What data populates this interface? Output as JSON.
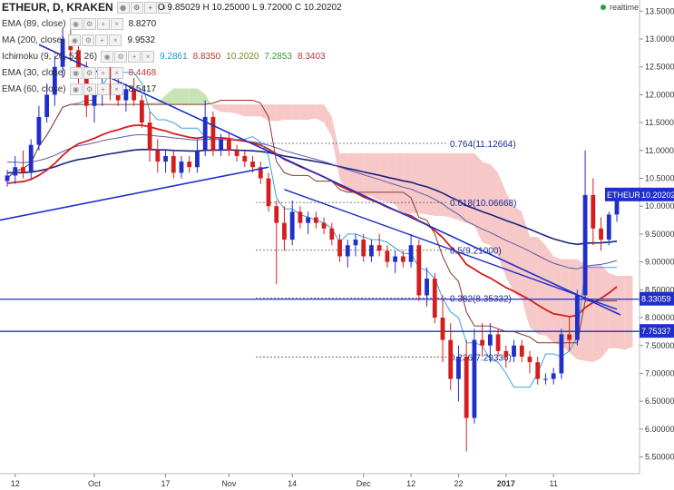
{
  "header": {
    "symbol": "ETHEUR, D, KRAKEN",
    "ohlc": "O 9.85029  H 10.25000  L 9.72000  C 10.20202",
    "realtime": "realtime"
  },
  "indicators": [
    {
      "label": "EMA (89, close)",
      "values": [
        "8.8270"
      ],
      "colors": [
        "#222222"
      ]
    },
    {
      "label": "MA (200, close)",
      "values": [
        "9.9532"
      ],
      "colors": [
        "#222222"
      ]
    },
    {
      "label": "Ichimoku (9, 26, 52, 26)",
      "values": [
        "9.2861",
        "8.8350",
        "10.2020",
        "7.2853",
        "8.3403"
      ],
      "colors": [
        "#2196c9",
        "#c0392b",
        "#6b8e23",
        "#3b9a3b",
        "#c0392b"
      ]
    },
    {
      "label": "EMA (30, close)",
      "values": [
        "8.4468"
      ],
      "colors": [
        "#c0392b"
      ]
    },
    {
      "label": "EMA (60, close)",
      "values": [
        "8.5417"
      ],
      "colors": [
        "#222222"
      ]
    }
  ],
  "colors": {
    "bull": "#1f2fc8",
    "bear": "#d41e1e",
    "ema30": "#d41e1e",
    "ema60": "#5b5ba8",
    "ma200": "#1a2280",
    "tenkan": "#3aa3dc",
    "kijun": "#8a3a2a",
    "cloud_bull": "#b6d9a0",
    "cloud_bear": "#f4b6b6",
    "trendline": "#1f2fc8",
    "fib": "#555555",
    "price_label": "#1f2fc8"
  },
  "chart_data": {
    "type": "candlestick",
    "symbol": "ETHEUR",
    "timeframe": "D",
    "exchange": "KRAKEN",
    "ylim": [
      5.2,
      13.7
    ],
    "y_ticks": [
      "13.50000",
      "13.00000",
      "12.50000",
      "12.00000",
      "11.50000",
      "11.00000",
      "10.50000",
      "10.00000",
      "9.50000",
      "9.00000",
      "8.50000",
      "8.00000",
      "7.50000",
      "7.00000",
      "6.50000",
      "6.00000",
      "5.50000"
    ],
    "x_ticks": [
      "12",
      "Oct",
      "17",
      "Nov",
      "14",
      "Dec",
      "12",
      "22",
      "2017",
      "11"
    ],
    "last_price_label": "10.20202",
    "price_tags": [
      {
        "label": "ETHEUR",
        "value": "10.20202"
      },
      {
        "label": "",
        "value": "8.33059"
      },
      {
        "label": "",
        "value": "7.75337"
      }
    ],
    "horizontal_lines": [
      8.33059,
      7.75337
    ],
    "fib_levels": [
      {
        "label": "0.764(11.12664)",
        "value": 11.12664
      },
      {
        "label": "0.618(10.06668)",
        "value": 10.06668
      },
      {
        "label": "0.5(9.21000)",
        "value": 9.21
      },
      {
        "label": "0.382(8.35332)",
        "value": 8.35332
      },
      {
        "label": "0.236(7.29336)",
        "value": 7.29336
      }
    ],
    "candles": [
      [
        10.45,
        10.65,
        10.35,
        10.55
      ],
      [
        10.55,
        10.9,
        10.4,
        10.7
      ],
      [
        10.7,
        11.0,
        10.5,
        10.6
      ],
      [
        10.6,
        11.2,
        10.5,
        11.1
      ],
      [
        11.1,
        11.8,
        11.0,
        11.6
      ],
      [
        11.6,
        12.2,
        11.5,
        12.0
      ],
      [
        12.0,
        12.7,
        11.8,
        12.5
      ],
      [
        12.5,
        13.2,
        12.3,
        13.0
      ],
      [
        13.0,
        13.3,
        12.6,
        12.8
      ],
      [
        12.8,
        13.0,
        12.2,
        12.4
      ],
      [
        12.4,
        12.6,
        11.6,
        11.8
      ],
      [
        11.8,
        12.1,
        11.5,
        12.0
      ],
      [
        12.0,
        12.4,
        11.8,
        12.2
      ],
      [
        12.2,
        12.5,
        11.9,
        12.1
      ],
      [
        12.1,
        12.3,
        11.8,
        11.9
      ],
      [
        11.9,
        12.2,
        11.7,
        12.1
      ],
      [
        12.1,
        12.3,
        11.8,
        11.9
      ],
      [
        11.9,
        12.0,
        11.4,
        11.5
      ],
      [
        11.5,
        11.7,
        10.8,
        11.0
      ],
      [
        11.0,
        11.2,
        10.6,
        10.8
      ],
      [
        10.8,
        11.0,
        10.6,
        10.9
      ],
      [
        10.9,
        11.0,
        10.5,
        10.6
      ],
      [
        10.6,
        10.9,
        10.5,
        10.8
      ],
      [
        10.8,
        10.9,
        10.6,
        10.7
      ],
      [
        10.7,
        11.2,
        10.6,
        11.0
      ],
      [
        11.0,
        11.9,
        10.9,
        11.6
      ],
      [
        11.6,
        11.7,
        10.9,
        11.0
      ],
      [
        11.0,
        11.3,
        10.9,
        11.2
      ],
      [
        11.2,
        11.3,
        10.9,
        11.0
      ],
      [
        11.0,
        11.1,
        10.8,
        10.9
      ],
      [
        10.9,
        11.0,
        10.7,
        10.8
      ],
      [
        10.8,
        10.9,
        10.6,
        10.7
      ],
      [
        10.7,
        10.8,
        10.4,
        10.5
      ],
      [
        10.5,
        10.6,
        9.9,
        10.0
      ],
      [
        10.0,
        10.1,
        8.6,
        9.7
      ],
      [
        9.7,
        10.0,
        9.2,
        9.4
      ],
      [
        9.4,
        10.1,
        9.3,
        9.9
      ],
      [
        9.9,
        10.0,
        9.6,
        9.7
      ],
      [
        9.7,
        9.9,
        9.5,
        9.8
      ],
      [
        9.8,
        9.9,
        9.6,
        9.7
      ],
      [
        9.7,
        9.8,
        9.5,
        9.6
      ],
      [
        9.6,
        9.7,
        9.3,
        9.4
      ],
      [
        9.4,
        9.5,
        9.0,
        9.1
      ],
      [
        9.1,
        9.4,
        8.9,
        9.3
      ],
      [
        9.3,
        9.5,
        9.1,
        9.4
      ],
      [
        9.4,
        9.5,
        9.0,
        9.1
      ],
      [
        9.1,
        9.4,
        9.0,
        9.3
      ],
      [
        9.3,
        9.5,
        9.1,
        9.2
      ],
      [
        9.2,
        9.3,
        8.9,
        9.0
      ],
      [
        9.0,
        9.2,
        8.8,
        9.1
      ],
      [
        9.1,
        9.2,
        8.9,
        9.0
      ],
      [
        9.0,
        9.5,
        8.9,
        9.3
      ],
      [
        9.3,
        9.4,
        8.3,
        8.4
      ],
      [
        8.4,
        8.9,
        8.2,
        8.7
      ],
      [
        8.7,
        8.8,
        7.9,
        8.0
      ],
      [
        8.0,
        8.4,
        7.2,
        7.6
      ],
      [
        7.6,
        7.9,
        6.7,
        6.9
      ],
      [
        6.9,
        7.5,
        6.5,
        7.3
      ],
      [
        7.3,
        7.6,
        5.6,
        6.2
      ],
      [
        6.2,
        7.8,
        6.1,
        7.6
      ],
      [
        7.6,
        7.9,
        7.3,
        7.5
      ],
      [
        7.5,
        7.9,
        7.2,
        7.7
      ],
      [
        7.7,
        7.8,
        7.3,
        7.4
      ],
      [
        7.4,
        7.5,
        7.1,
        7.3
      ],
      [
        7.3,
        7.6,
        7.2,
        7.5
      ],
      [
        7.5,
        7.6,
        7.2,
        7.3
      ],
      [
        7.3,
        7.4,
        7.0,
        7.2
      ],
      [
        7.2,
        7.3,
        6.8,
        6.9
      ],
      [
        6.9,
        7.0,
        6.8,
        6.9
      ],
      [
        6.9,
        7.1,
        6.8,
        7.0
      ],
      [
        7.0,
        7.8,
        6.9,
        7.7
      ],
      [
        7.7,
        8.0,
        7.4,
        7.6
      ],
      [
        7.6,
        8.5,
        7.5,
        8.4
      ],
      [
        8.4,
        11.0,
        8.3,
        10.2
      ],
      [
        10.2,
        10.5,
        9.3,
        9.6
      ],
      [
        9.6,
        9.8,
        9.2,
        9.4
      ],
      [
        9.4,
        9.9,
        9.3,
        9.85
      ],
      [
        9.85,
        10.25,
        9.72,
        10.2
      ]
    ]
  }
}
